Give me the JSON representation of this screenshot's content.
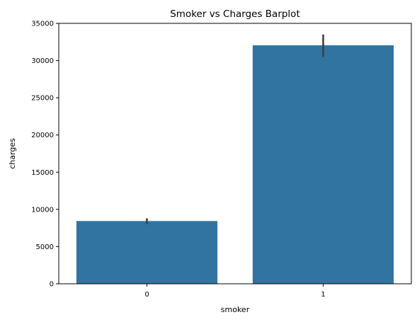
{
  "chart_data": {
    "type": "bar",
    "title": "Smoker vs Charges Barplot",
    "xlabel": "smoker",
    "ylabel": "charges",
    "categories": [
      "0",
      "1"
    ],
    "values": [
      8434,
      32050
    ],
    "error_low": [
      8000,
      30500
    ],
    "error_high": [
      8800,
      33500
    ],
    "ylim": [
      0,
      35000
    ],
    "yticks": [
      0,
      5000,
      10000,
      15000,
      20000,
      25000,
      30000,
      35000
    ],
    "ytick_labels": [
      "0",
      "5000",
      "10000",
      "15000",
      "20000",
      "25000",
      "30000",
      "35000"
    ],
    "grid": false,
    "bar_color": "#3274a1",
    "error_color": "#3f3f3f"
  }
}
